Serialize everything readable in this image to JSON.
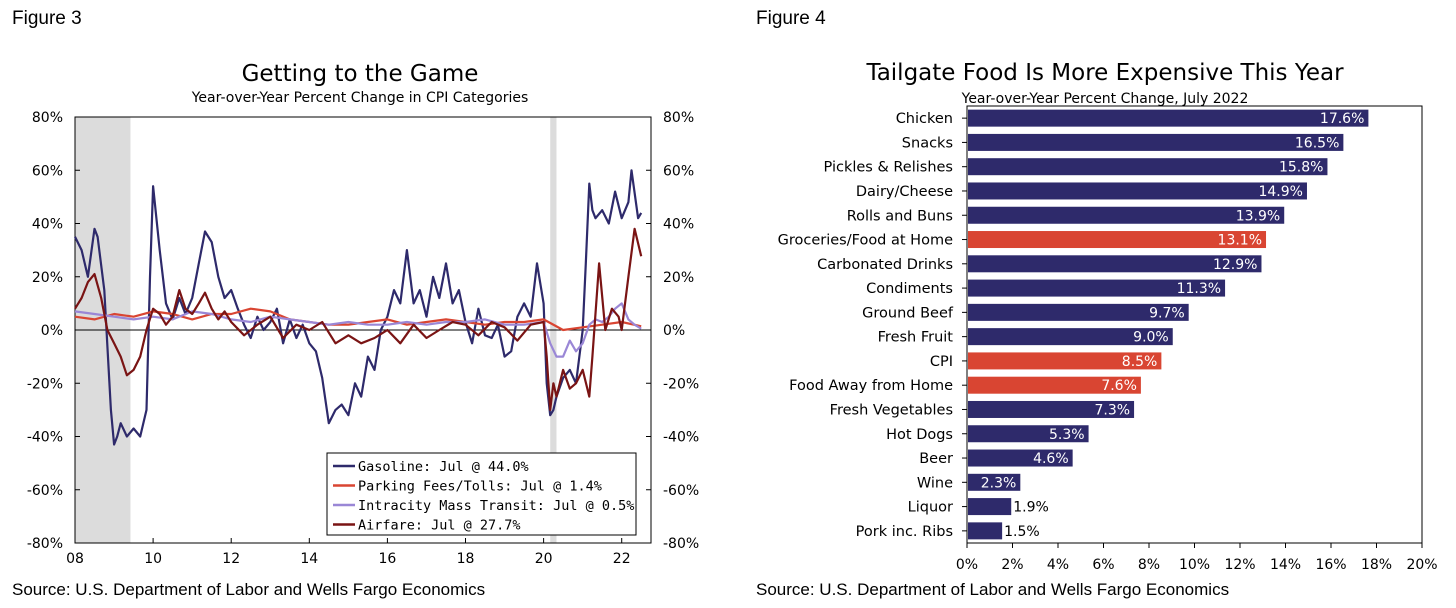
{
  "figure3": {
    "label": "Figure 3",
    "source": "Source: U.S. Department of Labor and Wells Fargo Economics"
  },
  "figure4": {
    "label": "Figure 4",
    "source": "Source: U.S. Department of Labor and Wells Fargo Economics"
  },
  "chart_data": [
    {
      "type": "line",
      "title": "Getting to the Game",
      "subtitle": "Year-over-Year Percent Change in CPI Categories",
      "xlabel": "",
      "ylabel": "",
      "x_ticks": [
        "08",
        "10",
        "12",
        "14",
        "16",
        "18",
        "20",
        "22"
      ],
      "x_range": [
        2008.0,
        2022.75
      ],
      "ylim": [
        -80,
        80
      ],
      "y_ticks": [
        "80%",
        "60%",
        "40%",
        "20%",
        "0%",
        "-20%",
        "-40%",
        "-60%",
        "-80%"
      ],
      "recessions": [
        [
          2008.0,
          2009.42
        ],
        [
          2020.17,
          2020.33
        ]
      ],
      "legend_position": "bottom-right",
      "series": [
        {
          "name": "Gasoline: Jul @ 44.0%",
          "color": "#2e2a6b",
          "x": [
            2008.0,
            2008.17,
            2008.33,
            2008.5,
            2008.58,
            2008.75,
            2008.92,
            2009.0,
            2009.08,
            2009.17,
            2009.33,
            2009.5,
            2009.67,
            2009.83,
            2009.92,
            2010.0,
            2010.17,
            2010.33,
            2010.5,
            2010.67,
            2010.83,
            2011.0,
            2011.17,
            2011.33,
            2011.5,
            2011.67,
            2011.83,
            2012.0,
            2012.17,
            2012.33,
            2012.5,
            2012.67,
            2012.83,
            2013.0,
            2013.17,
            2013.33,
            2013.5,
            2013.67,
            2013.83,
            2014.0,
            2014.17,
            2014.33,
            2014.5,
            2014.67,
            2014.83,
            2015.0,
            2015.17,
            2015.33,
            2015.5,
            2015.67,
            2015.83,
            2016.0,
            2016.17,
            2016.33,
            2016.5,
            2016.67,
            2016.83,
            2017.0,
            2017.17,
            2017.33,
            2017.5,
            2017.67,
            2017.83,
            2018.0,
            2018.17,
            2018.33,
            2018.5,
            2018.67,
            2018.83,
            2019.0,
            2019.17,
            2019.33,
            2019.5,
            2019.67,
            2019.83,
            2020.0,
            2020.08,
            2020.17,
            2020.25,
            2020.33,
            2020.5,
            2020.67,
            2020.83,
            2021.0,
            2021.08,
            2021.17,
            2021.25,
            2021.33,
            2021.5,
            2021.67,
            2021.83,
            2022.0,
            2022.17,
            2022.25,
            2022.42,
            2022.5
          ],
          "values": [
            35,
            30,
            20,
            38,
            35,
            15,
            -30,
            -43,
            -40,
            -35,
            -40,
            -37,
            -40,
            -30,
            20,
            54,
            30,
            10,
            4,
            12,
            6,
            12,
            25,
            37,
            33,
            20,
            12,
            15,
            8,
            2,
            -3,
            5,
            0,
            3,
            8,
            -5,
            4,
            -3,
            2,
            -5,
            -8,
            -18,
            -35,
            -30,
            -28,
            -32,
            -20,
            -25,
            -10,
            -15,
            0,
            5,
            15,
            10,
            30,
            10,
            15,
            5,
            20,
            12,
            25,
            10,
            15,
            3,
            -5,
            8,
            -2,
            -3,
            2,
            -10,
            -8,
            5,
            10,
            5,
            25,
            10,
            -20,
            -32,
            -30,
            -25,
            -18,
            -15,
            -20,
            0,
            25,
            55,
            45,
            42,
            45,
            40,
            52,
            42,
            48,
            60,
            42,
            44
          ]
        },
        {
          "name": "Parking Fees/Tolls: Jul @ 1.4%",
          "color": "#d94532",
          "x": [
            2008.0,
            2008.5,
            2009.0,
            2009.5,
            2010.0,
            2010.5,
            2011.0,
            2011.5,
            2012.0,
            2012.5,
            2013.0,
            2013.5,
            2014.0,
            2014.5,
            2015.0,
            2015.5,
            2016.0,
            2016.5,
            2017.0,
            2017.5,
            2018.0,
            2018.5,
            2019.0,
            2019.5,
            2020.0,
            2020.5,
            2021.0,
            2021.5,
            2022.0,
            2022.5
          ],
          "values": [
            5,
            4,
            6,
            5,
            7,
            6,
            4,
            6,
            6,
            8,
            7,
            4,
            3,
            2,
            2,
            3,
            4,
            2,
            3,
            4,
            3,
            2,
            3,
            3,
            4,
            0,
            1,
            2,
            3,
            1.4
          ]
        },
        {
          "name": "Intracity Mass Transit: Jul @ 0.5%",
          "color": "#9a87d6",
          "x": [
            2008.0,
            2008.5,
            2009.0,
            2009.5,
            2010.0,
            2010.5,
            2011.0,
            2011.5,
            2012.0,
            2012.5,
            2013.0,
            2013.5,
            2014.0,
            2014.5,
            2015.0,
            2015.5,
            2016.0,
            2016.5,
            2017.0,
            2017.5,
            2018.0,
            2018.5,
            2019.0,
            2019.5,
            2020.0,
            2020.17,
            2020.33,
            2020.5,
            2020.67,
            2020.83,
            2021.0,
            2021.17,
            2021.33,
            2021.5,
            2021.67,
            2021.83,
            2022.0,
            2022.17,
            2022.33,
            2022.5
          ],
          "values": [
            7,
            6,
            5,
            4,
            5,
            4,
            7,
            6,
            4,
            3,
            5,
            4,
            3,
            2,
            3,
            2,
            2,
            3,
            2,
            3,
            3,
            4,
            2,
            2,
            3,
            -5,
            -10,
            -10,
            -4,
            -8,
            -5,
            2,
            4,
            3,
            5,
            8,
            10,
            4,
            2,
            0.5
          ]
        },
        {
          "name": "Airfare: Jul @ 27.7%",
          "color": "#7a1414",
          "x": [
            2008.0,
            2008.17,
            2008.33,
            2008.5,
            2008.67,
            2008.83,
            2009.0,
            2009.17,
            2009.33,
            2009.5,
            2009.67,
            2009.83,
            2010.0,
            2010.17,
            2010.33,
            2010.5,
            2010.67,
            2010.83,
            2011.0,
            2011.17,
            2011.33,
            2011.5,
            2011.67,
            2011.83,
            2012.0,
            2012.33,
            2012.67,
            2013.0,
            2013.33,
            2013.67,
            2014.0,
            2014.33,
            2014.67,
            2015.0,
            2015.33,
            2015.67,
            2016.0,
            2016.33,
            2016.67,
            2017.0,
            2017.33,
            2017.67,
            2018.0,
            2018.33,
            2018.67,
            2019.0,
            2019.33,
            2019.67,
            2020.0,
            2020.08,
            2020.17,
            2020.25,
            2020.33,
            2020.5,
            2020.67,
            2020.83,
            2021.0,
            2021.17,
            2021.25,
            2021.42,
            2021.58,
            2021.75,
            2021.92,
            2022.0,
            2022.17,
            2022.33,
            2022.5
          ],
          "values": [
            8,
            12,
            18,
            21,
            12,
            0,
            -5,
            -10,
            -17,
            -15,
            -10,
            0,
            8,
            6,
            2,
            5,
            15,
            8,
            6,
            10,
            14,
            8,
            4,
            7,
            3,
            -2,
            2,
            5,
            -3,
            2,
            0,
            3,
            -5,
            -2,
            -5,
            -3,
            0,
            -5,
            2,
            -3,
            0,
            3,
            2,
            -2,
            3,
            1,
            -4,
            2,
            3,
            -10,
            -30,
            -20,
            -25,
            -15,
            -22,
            -20,
            -15,
            -25,
            -10,
            25,
            0,
            8,
            5,
            0,
            20,
            38,
            27.7
          ]
        }
      ]
    },
    {
      "type": "bar",
      "orientation": "horizontal",
      "title": "Tailgate Food Is More Expensive This Year",
      "subtitle": "Year-over-Year Percent Change, July 2022",
      "xlabel": "",
      "ylabel": "",
      "xlim": [
        0,
        20
      ],
      "x_ticks": [
        "0%",
        "2%",
        "4%",
        "6%",
        "8%",
        "10%",
        "12%",
        "14%",
        "16%",
        "18%",
        "20%"
      ],
      "default_color": "#2e2a6b",
      "highlight_color": "#d94532",
      "categories": [
        "Chicken",
        "Snacks",
        "Pickles & Relishes",
        "Dairy/Cheese",
        "Rolls and Buns",
        "Groceries/Food at Home",
        "Carbonated Drinks",
        "Condiments",
        "Ground Beef",
        "Fresh Fruit",
        "CPI",
        "Food Away from Home",
        "Fresh Vegetables",
        "Hot Dogs",
        "Beer",
        "Wine",
        "Liquor",
        "Pork inc. Ribs"
      ],
      "values": [
        17.6,
        16.5,
        15.8,
        14.9,
        13.9,
        13.1,
        12.9,
        11.3,
        9.7,
        9.0,
        8.5,
        7.6,
        7.3,
        5.3,
        4.6,
        2.3,
        1.9,
        1.5
      ],
      "value_labels": [
        "17.6%",
        "16.5%",
        "15.8%",
        "14.9%",
        "13.9%",
        "13.1%",
        "12.9%",
        "11.3%",
        "9.7%",
        "9.0%",
        "8.5%",
        "7.6%",
        "7.3%",
        "5.3%",
        "4.6%",
        "2.3%",
        "1.9%",
        "1.5%"
      ],
      "highlighted": [
        "Groceries/Food at Home",
        "CPI",
        "Food Away from Home"
      ]
    }
  ]
}
